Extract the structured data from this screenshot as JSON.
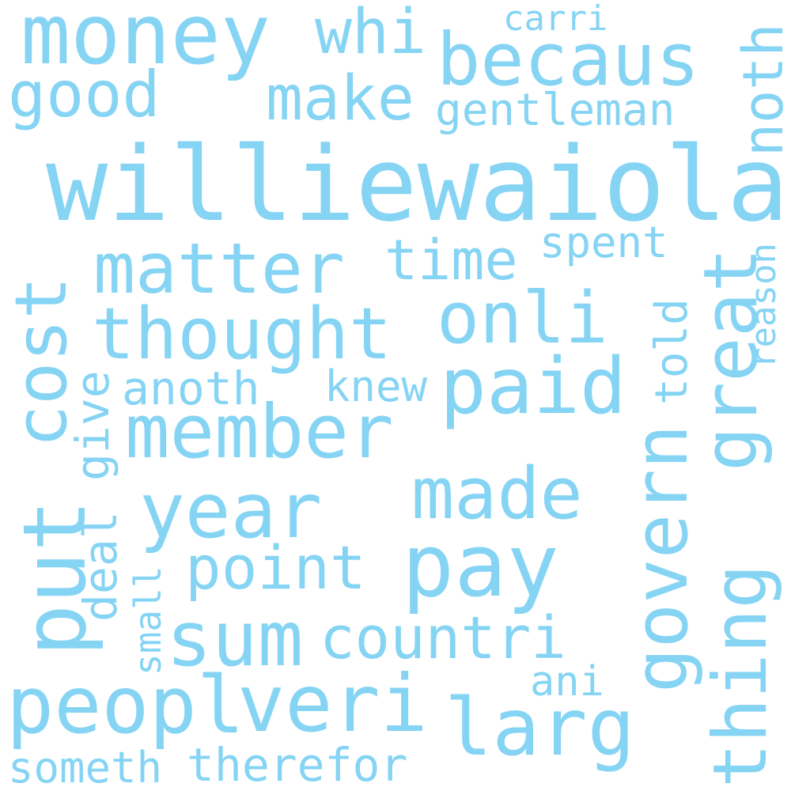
{
  "cloud": {
    "color": "#86d4f4",
    "background": "#ffffff",
    "words": {
      "williewaiola": "williewaiola",
      "money": "money",
      "becaus": "becaus",
      "whi": "whi",
      "carri": "carri",
      "good": "good",
      "make": "make",
      "gentleman": "gentleman",
      "noth": "noth",
      "matter": "matter",
      "time": "time",
      "spent": "spent",
      "thought": "thought",
      "onli": "onli",
      "cost": "cost",
      "great": "great",
      "reason": "reason",
      "told": "told",
      "anoth": "anoth",
      "knew": "knew",
      "paid": "paid",
      "give": "give",
      "member": "member",
      "govern": "govern",
      "made": "made",
      "year": "year",
      "put": "put",
      "point": "point",
      "pay": "pay",
      "deal": "deal",
      "small": "small",
      "thing": "thing",
      "sum": "sum",
      "countri": "countri",
      "ani": "ani",
      "peopl": "peopl",
      "veri": "veri",
      "larg": "larg",
      "someth": "someth",
      "therefor": "therefor"
    }
  }
}
